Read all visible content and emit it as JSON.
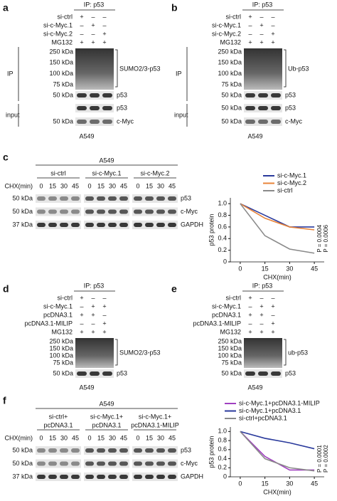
{
  "panels": [
    {
      "letter": "a",
      "ip": "IP: p53",
      "rows": [
        {
          "name": "si-ctrl",
          "signs": [
            "+",
            "–",
            "–"
          ]
        },
        {
          "name": "si-c-Myc.1",
          "signs": [
            "–",
            "+",
            "–"
          ]
        },
        {
          "name": "si-c-Myc.2",
          "signs": [
            "–",
            "–",
            "+"
          ]
        },
        {
          "name": "MG132",
          "signs": [
            "+",
            "+",
            "+"
          ]
        }
      ],
      "smear_markers": [
        "250 kDa",
        "150 kDa",
        "100 kDa",
        "75 kDa"
      ],
      "smear_label": "SUMO2/3-p53",
      "ip_label": "IP",
      "ip_bands": [
        {
          "marker": "50 kDa",
          "label": "p53"
        }
      ],
      "input_label": "input",
      "input_bands": [
        {
          "label": "p53"
        },
        {
          "marker": "50 kDa",
          "label": "c-Myc"
        }
      ],
      "cell": "A549"
    },
    {
      "letter": "b",
      "ip": "IP: p53",
      "rows": [
        {
          "name": "si-ctrl",
          "signs": [
            "+",
            "–",
            "–"
          ]
        },
        {
          "name": "si-c-Myc.1",
          "signs": [
            "–",
            "+",
            "–"
          ]
        },
        {
          "name": "si-c-Myc.2",
          "signs": [
            "–",
            "–",
            "+"
          ]
        },
        {
          "name": "MG132",
          "signs": [
            "+",
            "+",
            "+"
          ]
        }
      ],
      "smear_markers": [
        "250 kDa",
        "150 kDa",
        "100 kDa",
        "75 kDa"
      ],
      "smear_label": "Ub-p53",
      "ip_label": "IP",
      "ip_bands": [
        {
          "marker": "50 kDa",
          "label": "p53"
        }
      ],
      "input_label": "input",
      "input_bands": [
        {
          "marker": "50 kDa",
          "label": "p53"
        },
        {
          "marker": "50 kDa",
          "label": "c-Myc"
        }
      ],
      "cell": "A549"
    },
    {
      "letter": "d",
      "ip": "IP: p53",
      "rows": [
        {
          "name": "si-ctrl",
          "signs": [
            "+",
            "–",
            "–"
          ]
        },
        {
          "name": "si-c-Myc.1",
          "signs": [
            "–",
            "+",
            "+"
          ]
        },
        {
          "name": "pcDNA3.1",
          "signs": [
            "+",
            "+",
            "–"
          ]
        },
        {
          "name": "pcDNA3.1-MILIP",
          "signs": [
            "–",
            "–",
            "+"
          ]
        },
        {
          "name": "MG132",
          "signs": [
            "+",
            "+",
            "+"
          ]
        }
      ],
      "smear_markers": [
        "250 kDa",
        "150 kDa",
        "100 kDa",
        "75 kDa"
      ],
      "smear_label": "SUMO2/3-p53",
      "ip_bands": [
        {
          "marker": "50 kDa",
          "label": "p53"
        }
      ],
      "cell": "A549"
    },
    {
      "letter": "e",
      "ip": "IP: p53",
      "rows": [
        {
          "name": "si-ctrl",
          "signs": [
            "+",
            "–",
            "–"
          ]
        },
        {
          "name": "si-c-Myc.1",
          "signs": [
            "–",
            "+",
            "+"
          ]
        },
        {
          "name": "pcDNA3.1",
          "signs": [
            "+",
            "+",
            "–"
          ]
        },
        {
          "name": "pcDNA3.1-MILIP",
          "signs": [
            "–",
            "–",
            "+"
          ]
        },
        {
          "name": "MG132",
          "signs": [
            "+",
            "+",
            "+"
          ]
        }
      ],
      "smear_markers": [
        "250 kDa",
        "150 kDa",
        "100 kDa",
        "75 kDa"
      ],
      "smear_label": "ub-p53",
      "ip_bands": [
        {
          "marker": "50 kDa",
          "label": "p53"
        }
      ],
      "cell": "A549"
    }
  ],
  "chx_panels": [
    {
      "letter": "c",
      "cell": "A549",
      "groups": [
        [
          "si-ctrl"
        ],
        [
          "si-c-Myc.1"
        ],
        [
          "si-c-Myc.2"
        ]
      ],
      "chx_label": "CHX(min)",
      "times": [
        "0",
        "15",
        "30",
        "45"
      ],
      "rows": [
        {
          "marker": "50 kDa",
          "label": "p53"
        },
        {
          "marker": "50 kDa",
          "label": "c-Myc"
        },
        {
          "marker": "37 kDa",
          "label": "GAPDH"
        }
      ]
    },
    {
      "letter": "f",
      "cell": "A549",
      "groups": [
        [
          "si-ctrl+",
          "pcDNA3.1"
        ],
        [
          "si-c-Myc.1+",
          "pcDNA3.1"
        ],
        [
          "si-c-Myc.1+",
          "pcDNA3.1-MILIP"
        ]
      ],
      "chx_label": "CHX(min)",
      "times": [
        "0",
        "15",
        "30",
        "45"
      ],
      "rows": [
        {
          "marker": "50 kDa",
          "label": "p53"
        },
        {
          "marker": "50 kDa",
          "label": "c-Myc"
        },
        {
          "marker": "37 kDa",
          "label": "GAPDH"
        }
      ]
    }
  ],
  "chart_data": [
    {
      "type": "line",
      "x": [
        0,
        15,
        30,
        45
      ],
      "xlim": [
        -6,
        51
      ],
      "xticks": [
        0,
        15,
        30,
        45
      ],
      "ylim": [
        0,
        1.1
      ],
      "yticks": [
        0,
        0.2,
        0.4,
        0.6,
        0.8,
        {
          "value": 1,
          "label": "1.0"
        }
      ],
      "xlabel": "CHX(min)",
      "ylabel": "p53 protein",
      "legend": "top-right",
      "series": [
        {
          "name": "si-c-Myc.1",
          "color": "#2a3a9c",
          "values": [
            1,
            0.8,
            0.6,
            0.6
          ]
        },
        {
          "name": "si-c-Myc.2",
          "color": "#e8843a",
          "values": [
            1,
            0.75,
            0.6,
            0.55
          ]
        },
        {
          "name": "si-ctrl",
          "color": "#8a8a8a",
          "values": [
            1,
            0.45,
            0.22,
            0.15
          ]
        }
      ],
      "annotations": [
        {
          "text": "P = 0.0004",
          "color": "#2a3a9c"
        },
        {
          "text": "P = 0.0006",
          "color": "#e8843a"
        }
      ]
    },
    {
      "type": "line",
      "x": [
        0,
        15,
        30,
        45
      ],
      "xlim": [
        -6,
        51
      ],
      "xticks": [
        0,
        15,
        30,
        45
      ],
      "ylim": [
        0,
        1.1
      ],
      "yticks": [
        0,
        0.2,
        0.4,
        0.6,
        0.8,
        {
          "value": 1,
          "label": "1.0"
        }
      ],
      "xlabel": "CHX(min)",
      "ylabel": "p53 protein",
      "legend": "top",
      "series": [
        {
          "name": "si-c-Myc.1+pcDNA3.1-MILIP",
          "color": "#a040c0",
          "values": [
            1,
            0.45,
            0.15,
            0.15
          ]
        },
        {
          "name": "si-c-Myc.1+pcDNA3.1",
          "color": "#2a3a9c",
          "values": [
            1,
            0.85,
            0.75,
            0.62
          ]
        },
        {
          "name": "si-ctrl+pcDNA3.1",
          "color": "#8a8a8a",
          "values": [
            1,
            0.4,
            0.2,
            0.13
          ]
        }
      ],
      "annotations": [
        {
          "text": "P = 0.0001",
          "color": "#a040c0"
        },
        {
          "text": "P = 0.0002",
          "color": "#8a8a8a"
        }
      ]
    }
  ]
}
